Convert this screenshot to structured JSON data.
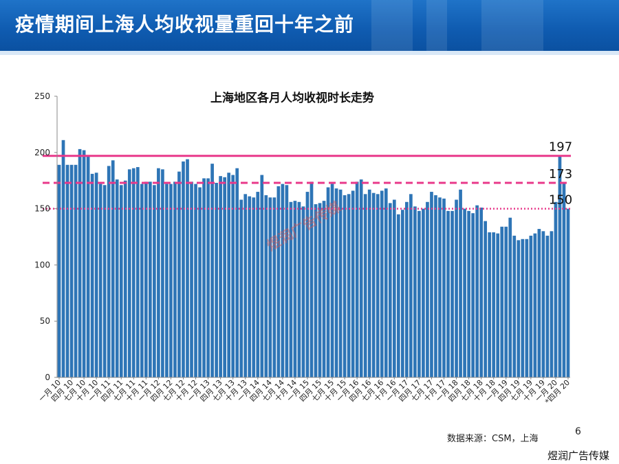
{
  "slide": {
    "title": "疫情期间上海人均收视量重回十年之前",
    "source": "数据来源：CSM，上海",
    "page_number": "6",
    "brand": "煜润广告传媒",
    "watermark": "煜润广告传媒"
  },
  "colors": {
    "banner": "#0f5bb0",
    "bar": "#2e75b6",
    "ref_line": "#e8388a"
  },
  "chart_data": {
    "type": "bar",
    "title": "上海地区各月人均收视时长走势",
    "xlabel": "",
    "ylabel": "",
    "ylim": [
      0,
      250
    ],
    "yticks": [
      0,
      50,
      100,
      150,
      200,
      250
    ],
    "grid": false,
    "legend": "none",
    "x_tick_labels": [
      "一月 10",
      "四月 10",
      "七月 10",
      "十月 10",
      "一月 11",
      "四月 11",
      "七月 11",
      "十月 11",
      "一月 12",
      "四月 12",
      "七月 12",
      "十月 12",
      "一月 13",
      "四月 13",
      "七月 13",
      "十月 13",
      "一月 14",
      "四月 14",
      "七月 14",
      "十月 14",
      "一月 15",
      "四月 15",
      "七月 15",
      "十月 15",
      "一月 16",
      "四月 16",
      "七月 16",
      "十月 16",
      "一月 17",
      "四月 17",
      "七月 17",
      "十月 17",
      "一月 18",
      "四月 18",
      "七月 18",
      "十月 18",
      "一月 19",
      "四月 19",
      "七月 19",
      "十月 19",
      "一月 20",
      "*四月 20"
    ],
    "values": [
      189,
      211,
      189,
      189,
      189,
      203,
      202,
      197,
      181,
      182,
      172,
      171,
      188,
      193,
      176,
      171,
      175,
      185,
      186,
      187,
      172,
      174,
      174,
      171,
      186,
      185,
      172,
      172,
      174,
      183,
      192,
      194,
      174,
      172,
      169,
      177,
      177,
      190,
      173,
      179,
      178,
      182,
      180,
      186,
      158,
      163,
      161,
      160,
      165,
      180,
      162,
      160,
      160,
      170,
      172,
      171,
      156,
      157,
      156,
      152,
      165,
      174,
      154,
      155,
      157,
      169,
      172,
      168,
      167,
      162,
      163,
      166,
      174,
      176,
      163,
      167,
      164,
      163,
      166,
      168,
      155,
      158,
      145,
      149,
      156,
      163,
      152,
      148,
      150,
      156,
      165,
      162,
      160,
      159,
      148,
      148,
      158,
      167,
      150,
      148,
      146,
      153,
      151,
      139,
      129,
      129,
      128,
      134,
      134,
      142,
      126,
      122,
      123,
      123,
      126,
      128,
      132,
      130,
      126,
      130,
      156,
      197,
      173,
      150
    ],
    "reference_lines": [
      {
        "value": 197,
        "label": "197",
        "style": "solid"
      },
      {
        "value": 173,
        "label": "173",
        "style": "dashed"
      },
      {
        "value": 150,
        "label": "150",
        "style": "dotted"
      }
    ]
  }
}
